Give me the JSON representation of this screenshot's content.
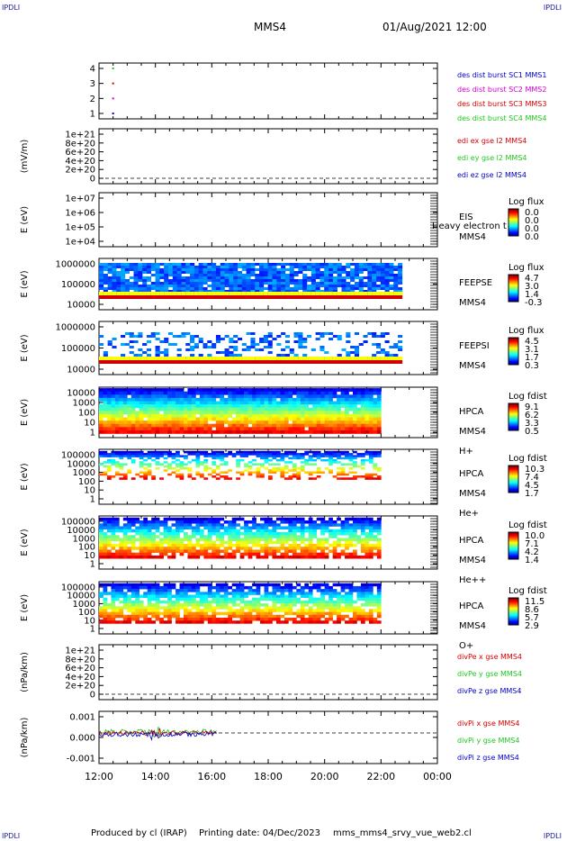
{
  "corners": {
    "tl": "IPDLI",
    "tr": "IPDLI",
    "bl": "IPDLI",
    "br": "IPDLI"
  },
  "header": {
    "spacecraft": "MMS4",
    "datetime": "01/Aug/2021 12:00"
  },
  "footer": {
    "produced": "Produced by cl (IRAP)",
    "printing": "Printing date: 04/Dec/2023",
    "file": "mms_mms4_srvy_vue_web2.cl"
  },
  "x_ticks": [
    "12:00",
    "14:00",
    "16:00",
    "18:00",
    "20:00",
    "22:00",
    "00:00"
  ],
  "colors": {
    "red": "#d40000",
    "green": "#1ec81e",
    "blue": "#0000c8",
    "magenta": "#d000d0",
    "label_blue": "#1a1aa0"
  },
  "chart_data": [
    {
      "type": "scatter",
      "ylim": [
        0.5,
        4.5
      ],
      "yticks": [
        "4",
        "3",
        "2",
        "1"
      ],
      "legend": [
        {
          "text": "des dist burst SC1 MMS1",
          "color": "#0000c8"
        },
        {
          "text": "des dist burst SC2 MMS2",
          "color": "#d000d0"
        },
        {
          "text": "des dist burst SC3 MMS3",
          "color": "#d40000"
        },
        {
          "text": "des dist burst SC4 MMS4",
          "color": "#1ec81e"
        }
      ],
      "points": [
        {
          "t": "12:30",
          "sc": 4
        },
        {
          "t": "12:30",
          "sc": 3
        },
        {
          "t": "12:30",
          "sc": 2
        },
        {
          "t": "12:30",
          "sc": 1
        }
      ]
    },
    {
      "type": "line",
      "ylabel": "(mV/m)",
      "yticks": [
        "1e+21",
        "8e+20",
        "6e+20",
        "4e+20",
        "2e+20",
        "0"
      ],
      "legend": [
        {
          "text": "edi ex gse l2 MMS4",
          "color": "#d40000"
        },
        {
          "text": "edi ey gse l2 MMS4",
          "color": "#1ec81e"
        },
        {
          "text": "edi ez gse l2 MMS4",
          "color": "#0000c8"
        }
      ]
    },
    {
      "type": "heatmap",
      "ylabel": "E (eV)",
      "yticks": [
        "1e+07",
        "1e+06",
        "1e+05",
        "1e+04"
      ],
      "right": [
        "EIS",
        "MMS4"
      ],
      "overlay": "Heavy electron t",
      "cbar_title": "Log flux",
      "cbar_ticks": [
        "0.0",
        "0.0",
        "0.0",
        "0.0"
      ]
    },
    {
      "type": "heatmap",
      "ylabel": "E (eV)",
      "yticks": [
        "1000000",
        "100000",
        "10000"
      ],
      "right": [
        "FEEPSE",
        "MMS4"
      ],
      "cbar_title": "Log flux",
      "cbar_ticks": [
        "4.7",
        "3.0",
        "1.4",
        "-0.3"
      ]
    },
    {
      "type": "heatmap",
      "ylabel": "E (eV)",
      "yticks": [
        "1000000",
        "100000",
        "10000"
      ],
      "right": [
        "FEEPSI",
        "MMS4"
      ],
      "cbar_title": "Log flux",
      "cbar_ticks": [
        "4.5",
        "3.1",
        "1.7",
        "0.3"
      ]
    },
    {
      "type": "heatmap",
      "ylabel": "E (eV)",
      "yticks": [
        "10000",
        "1000",
        "100",
        "10",
        "1"
      ],
      "right": [
        "HPCA",
        "MMS4",
        "H+"
      ],
      "cbar_title": "Log fdist",
      "cbar_ticks": [
        "9.1",
        "6.2",
        "3.3",
        "0.5"
      ]
    },
    {
      "type": "heatmap",
      "ylabel": "E (eV)",
      "yticks": [
        "100000",
        "10000",
        "1000",
        "100",
        "10",
        "1"
      ],
      "right": [
        "HPCA",
        "MMS4",
        "He+"
      ],
      "cbar_title": "Log fdist",
      "cbar_ticks": [
        "10.3",
        "7.4",
        "4.5",
        "1.7"
      ]
    },
    {
      "type": "heatmap",
      "ylabel": "E (eV)",
      "yticks": [
        "100000",
        "10000",
        "1000",
        "100",
        "10",
        "1"
      ],
      "right": [
        "HPCA",
        "MMS4",
        "He++"
      ],
      "cbar_title": "Log fdist",
      "cbar_ticks": [
        "10.0",
        "7.1",
        "4.2",
        "1.4"
      ]
    },
    {
      "type": "heatmap",
      "ylabel": "E (eV)",
      "yticks": [
        "100000",
        "10000",
        "1000",
        "100",
        "10",
        "1"
      ],
      "right": [
        "HPCA",
        "MMS4",
        "O+"
      ],
      "cbar_title": "Log fdist",
      "cbar_ticks": [
        "11.5",
        "8.6",
        "5.7",
        "2.9"
      ]
    },
    {
      "type": "line",
      "ylabel": "(nPa/km)",
      "yticks": [
        "1e+21",
        "8e+20",
        "6e+20",
        "4e+20",
        "2e+20",
        "0"
      ],
      "legend": [
        {
          "text": "divPe x gse MMS4",
          "color": "#d40000"
        },
        {
          "text": "divPe y gse MMS4",
          "color": "#1ec81e"
        },
        {
          "text": "divPe z gse MMS4",
          "color": "#0000c8"
        }
      ]
    },
    {
      "type": "line",
      "ylabel": "(nPa/km)",
      "yticks": [
        "0.001",
        "0.000",
        "-0.001"
      ],
      "legend": [
        {
          "text": "divPi x gse MMS4",
          "color": "#d40000"
        },
        {
          "text": "divPi y gse MMS4",
          "color": "#1ec81e"
        },
        {
          "text": "divPi z gse MMS4",
          "color": "#0000c8"
        }
      ]
    }
  ]
}
